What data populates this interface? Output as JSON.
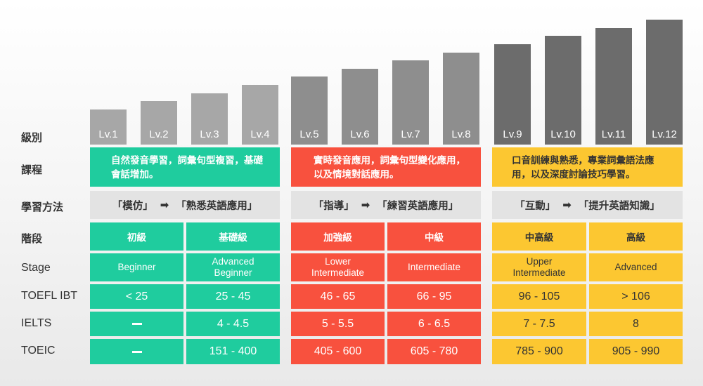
{
  "row_labels": {
    "level": "級別",
    "course": "課程",
    "method": "學習方法",
    "phase": "階段",
    "stage": "Stage",
    "toefl": "TOEFL IBT",
    "ielts": "IELTS",
    "toeic": "TOEIC"
  },
  "colors": {
    "green": "#1fcc9e",
    "red": "#f8513e",
    "yellow": "#fcc731",
    "bar_light": "#a7a7a7",
    "bar_mid": "#8e8e8e",
    "bar_dark": "#6c6c6c",
    "method_bg": "#e3e3e3"
  },
  "chart_data": {
    "type": "bar",
    "categories": [
      "Lv.1",
      "Lv.2",
      "Lv.3",
      "Lv.4",
      "Lv.5",
      "Lv.6",
      "Lv.7",
      "Lv.8",
      "Lv.9",
      "Lv.10",
      "Lv.11",
      "Lv.12"
    ],
    "values": [
      1,
      2,
      3,
      4,
      5,
      6,
      7,
      8,
      9,
      10,
      11,
      12
    ],
    "title": "",
    "xlabel": "",
    "ylabel": "",
    "ylim": [
      0,
      12
    ],
    "grid": false,
    "groups": [
      {
        "levels": [
          1,
          2,
          3,
          4
        ],
        "color": "#a7a7a7"
      },
      {
        "levels": [
          5,
          6,
          7,
          8
        ],
        "color": "#8e8e8e"
      },
      {
        "levels": [
          9,
          10,
          11,
          12
        ],
        "color": "#6c6c6c"
      }
    ]
  },
  "groups": [
    {
      "course": "自然發音學習，詞彙句型複習，基礎會話增加。",
      "method": {
        "from": "「模仿」",
        "arrow": "➡",
        "to": "「熟悉英語應用」"
      },
      "cols": [
        {
          "phase": "初級",
          "stage": "Beginner",
          "toefl": "< 25",
          "ielts": "",
          "ielts_dash": true,
          "toeic": "",
          "toeic_dash": true
        },
        {
          "phase": "基礎級",
          "stage": "Advanced\nBeginner",
          "toefl": "25 - 45",
          "ielts": "4 - 4.5",
          "toeic": "151 - 400"
        }
      ]
    },
    {
      "course": "實時發音應用，詞彙句型變化應用，以及情境對話應用。",
      "method": {
        "from": "「指導」",
        "arrow": "➡",
        "to": "「練習英語應用」"
      },
      "cols": [
        {
          "phase": "加強級",
          "stage": "Lower\nIntermediate",
          "toefl": "46 - 65",
          "ielts": "5 - 5.5",
          "toeic": "405 - 600"
        },
        {
          "phase": "中級",
          "stage": "Intermediate",
          "toefl": "66 - 95",
          "ielts": "6 - 6.5",
          "toeic": "605 - 780"
        }
      ]
    },
    {
      "course": "口音訓練與熟悉，專業詞彙語法應用，以及深度討論技巧學習。",
      "method": {
        "from": "「互動」",
        "arrow": "➡",
        "to": "「提升英語知識」"
      },
      "cols": [
        {
          "phase": "中高級",
          "stage": "Upper\nIntermediate",
          "toefl": "96 - 105",
          "ielts": "7 - 7.5",
          "toeic": "785 - 900"
        },
        {
          "phase": "高級",
          "stage": "Advanced",
          "toefl": "> 106",
          "ielts": "8",
          "toeic": "905 - 990"
        }
      ]
    }
  ]
}
